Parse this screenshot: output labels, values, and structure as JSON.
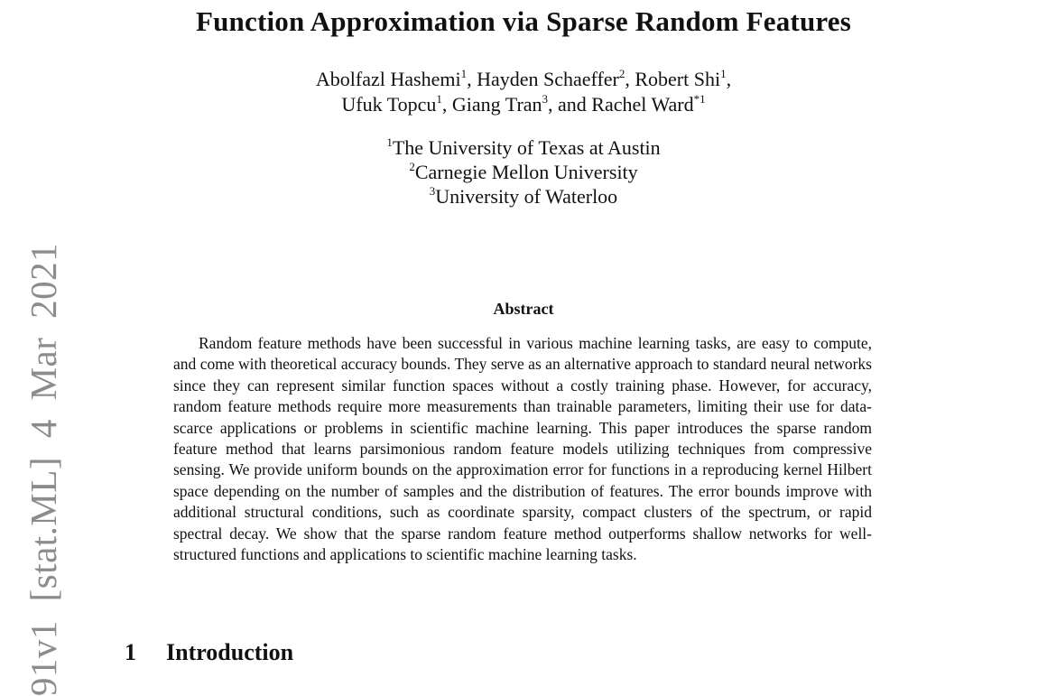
{
  "paper": {
    "title": "Function Approximation via Sparse Random Features",
    "authors_line1": [
      {
        "name": "Abolfazl Hashemi",
        "sup": "1",
        "sep": ", "
      },
      {
        "name": "Hayden Schaeffer",
        "sup": "2",
        "sep": ", "
      },
      {
        "name": "Robert Shi",
        "sup": "1",
        "sep": ","
      }
    ],
    "authors_line2": [
      {
        "name": "Ufuk Topcu",
        "sup": "1",
        "sep": ", "
      },
      {
        "name": "Giang Tran",
        "sup": "3",
        "sep": ", and "
      },
      {
        "name": "Rachel Ward",
        "sup": "*1",
        "sep": ""
      }
    ],
    "affiliations": [
      {
        "sup": "1",
        "name": "The University of Texas at Austin"
      },
      {
        "sup": "2",
        "name": "Carnegie Mellon University"
      },
      {
        "sup": "3",
        "name": "University of Waterloo"
      }
    ],
    "abstract_heading": "Abstract",
    "abstract_text": "Random feature methods have been successful in various machine learning tasks, are easy to compute, and come with theoretical accuracy bounds. They serve as an alternative approach to standard neural networks since they can represent similar function spaces without a costly training phase. However, for accuracy, random feature methods require more measurements than trainable parameters, limiting their use for data-scarce applications or problems in scientific machine learning. This paper introduces the sparse random feature method that learns parsimonious random feature models utilizing techniques from compressive sensing. We provide uniform bounds on the approximation error for functions in a reproducing kernel Hilbert space depending on the number of samples and the distribution of features. The error bounds improve with additional structural conditions, such as coordinate sparsity, compact clusters of the spectrum, or rapid spectral decay. We show that the sparse random feature method outperforms shallow networks for well-structured functions and applications to scientific machine learning tasks.",
    "section": {
      "number": "1",
      "title": "Introduction"
    }
  },
  "arxiv_stamp": "91v1  [stat.ML]  4 Mar 2021"
}
